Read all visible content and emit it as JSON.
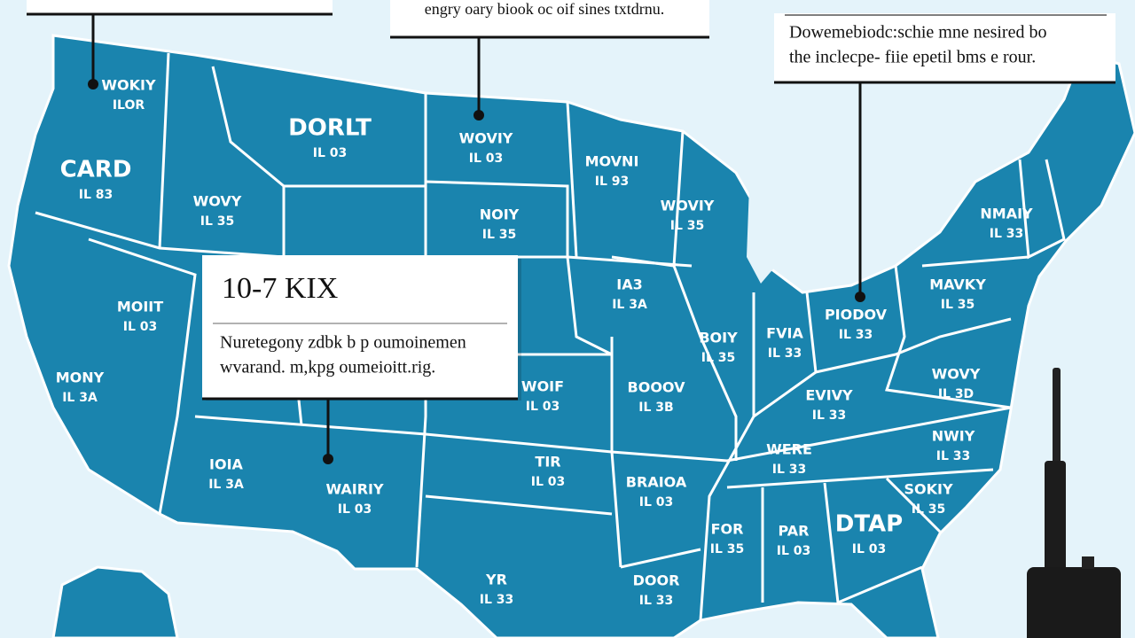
{
  "callouts": {
    "top_center": {
      "text": "engry oary biook oc oif sines txtdrnu."
    },
    "top_right": {
      "lines": [
        "Dowemebiodc:schie mne nesired bo",
        "the inclecpe- fiie epetil bms e rour."
      ]
    },
    "main": {
      "title": "10-7 KIX",
      "lines": [
        "Nuretegony zdbk b p oumoinemen",
        "wvarand. m,kpg oumeioitt.rig."
      ]
    }
  },
  "states": [
    {
      "name": "WOKIY",
      "code": "ILOR"
    },
    {
      "name": "CARD",
      "code": "IL 83"
    },
    {
      "name": "DORLT",
      "code": "IL 03"
    },
    {
      "name": "WOVIY",
      "code": "IL 03"
    },
    {
      "name": "WOVY",
      "code": "IL 35"
    },
    {
      "name": "MOVNI",
      "code": "IL 93"
    },
    {
      "name": "NOIY",
      "code": "IL 35"
    },
    {
      "name": "WOVIY",
      "code": "IL 35"
    },
    {
      "name": "MOIIT",
      "code": "IL 03"
    },
    {
      "name": "MONY",
      "code": "IL 3A"
    },
    {
      "name": "IA3",
      "code": "IL 3A"
    },
    {
      "name": "BOIY",
      "code": "IL 35"
    },
    {
      "name": "NMAIY",
      "code": "IL 33"
    },
    {
      "name": "PIODOV",
      "code": "IL 33"
    },
    {
      "name": "MAVKY",
      "code": "IL 35"
    },
    {
      "name": "WOIF",
      "code": "IL 03"
    },
    {
      "name": "BOOOV",
      "code": "IL 3B"
    },
    {
      "name": "FVIA",
      "code": "IL 33"
    },
    {
      "name": "EVIVY",
      "code": "IL 33"
    },
    {
      "name": "WOVY",
      "code": "IL 3D"
    },
    {
      "name": "IOIA",
      "code": "IL 3A"
    },
    {
      "name": "WAIRIY",
      "code": "IL 03"
    },
    {
      "name": "TIR",
      "code": "IL 03"
    },
    {
      "name": "WERE",
      "code": "IL 33"
    },
    {
      "name": "BRAIOA",
      "code": "IL 03"
    },
    {
      "name": "NWIY",
      "code": "IL 33"
    },
    {
      "name": "SOKIY",
      "code": "IL 35"
    },
    {
      "name": "FOR",
      "code": "IL 35"
    },
    {
      "name": "PAR",
      "code": "IL 03"
    },
    {
      "name": "DTAP",
      "code": "IL 03"
    },
    {
      "name": "YR",
      "code": "IL 33"
    },
    {
      "name": "DOOR",
      "code": "IL 33"
    }
  ]
}
